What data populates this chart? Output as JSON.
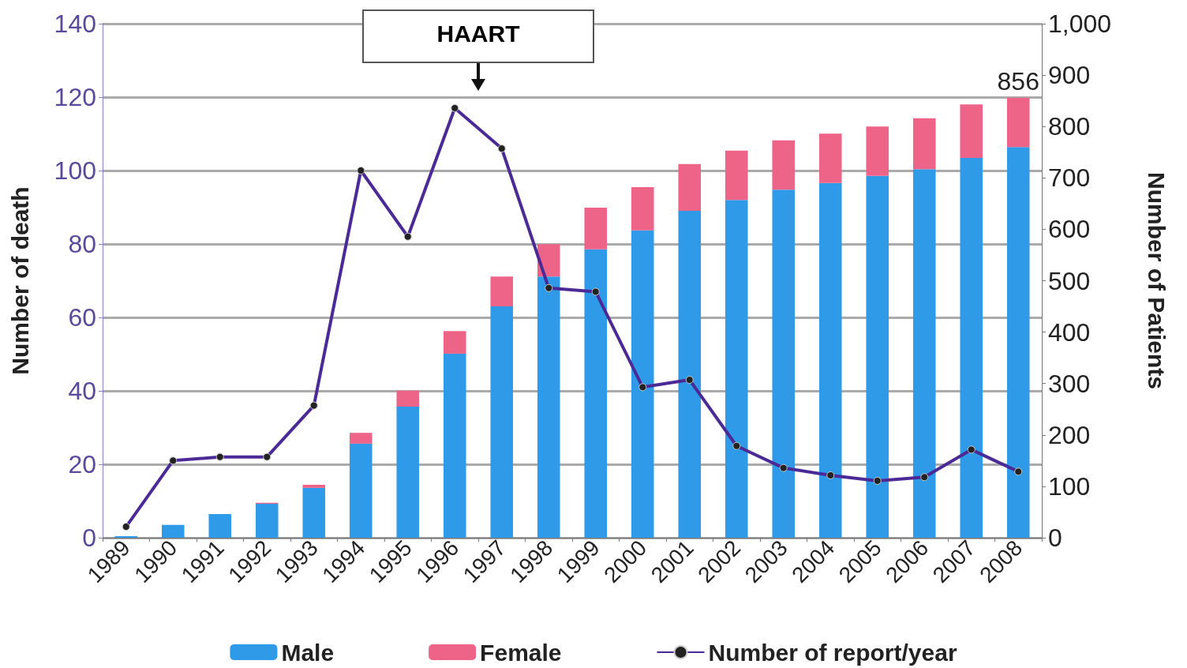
{
  "chart_data": {
    "type": "bar",
    "stacked": true,
    "xlabel": null,
    "ylabel": "Number of death",
    "y2label": "Number of Patients",
    "categories": [
      "1989",
      "1990",
      "1991",
      "1992",
      "1993",
      "1994",
      "1995",
      "1996",
      "1997",
      "1998",
      "1999",
      "2000",
      "2001",
      "2002",
      "2003",
      "2004",
      "2005",
      "2006",
      "2007",
      "2008"
    ],
    "series": [
      {
        "name": "Male",
        "color": "#2f9be8",
        "axis": "y2",
        "values": [
          3,
          25,
          46,
          66,
          97,
          183,
          255,
          358,
          450,
          508,
          561,
          598,
          636,
          657,
          677,
          690,
          704,
          717,
          739,
          760
        ]
      },
      {
        "name": "Female",
        "color": "#ee6488",
        "axis": "y2",
        "values": [
          0,
          0,
          0,
          2,
          6,
          21,
          31,
          44,
          58,
          63,
          81,
          84,
          91,
          96,
          96,
          96,
          96,
          99,
          104,
          96
        ]
      },
      {
        "name": "Number of report/year",
        "type": "line",
        "color": "#4b2a96",
        "axis": "y",
        "marker": "circle",
        "values": [
          3,
          21,
          22,
          22,
          36,
          100,
          82,
          117,
          106,
          68,
          67,
          41,
          43,
          25,
          19,
          17,
          15.5,
          16.5,
          24,
          18
        ]
      }
    ],
    "totals": [
      null,
      null,
      null,
      null,
      null,
      null,
      null,
      null,
      null,
      null,
      null,
      null,
      null,
      null,
      null,
      null,
      null,
      null,
      null,
      "856"
    ],
    "annotations": [
      "HAART"
    ],
    "ylim": [
      0,
      140
    ],
    "yticks": [
      0,
      20,
      40,
      60,
      80,
      100,
      120,
      140
    ],
    "y2lim": [
      0,
      1000
    ],
    "y2ticks": [
      0,
      100,
      200,
      300,
      400,
      500,
      600,
      700,
      800,
      900,
      {
        "value": 1000,
        "label": "1,000"
      }
    ],
    "grid": "y",
    "legend": "bottom"
  }
}
